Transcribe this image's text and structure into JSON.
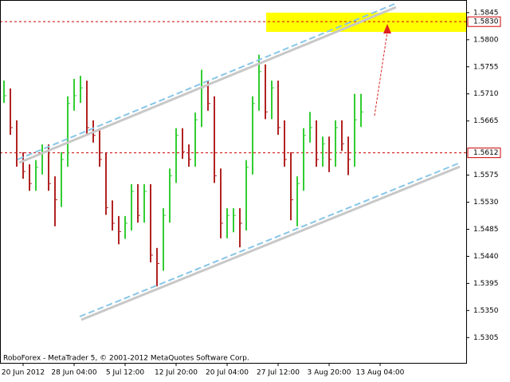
{
  "chart_data": {
    "type": "bars",
    "footer": "RoboForex - MetaTrader 5, © 2001-2012 MetaQuotes Software Corp.",
    "categories": [
      null,
      null,
      null,
      "20 Jun 2012",
      null,
      null,
      null,
      null,
      null,
      null,
      null,
      "28 Jun 04:00",
      null,
      null,
      null,
      null,
      null,
      null,
      null,
      "5 Jul 12:00",
      null,
      null,
      null,
      null,
      null,
      null,
      null,
      "12 Jul 20:00",
      null,
      null,
      null,
      null,
      null,
      null,
      null,
      "20 Jul 04:00",
      null,
      null,
      null,
      null,
      null,
      null,
      null,
      "27 Jul 12:00",
      null,
      null,
      null,
      null,
      null,
      null,
      null,
      "3 Aug 20:00",
      null,
      null,
      null,
      null,
      null,
      null,
      null,
      "13 Aug 04:00"
    ],
    "high": [
      1.5732,
      1.5719,
      1.5666,
      1.5613,
      1.5593,
      1.56,
      1.5626,
      1.5626,
      1.5573,
      1.5613,
      1.5706,
      1.5735,
      1.574,
      1.5732,
      1.5666,
      1.5653,
      1.5613,
      1.5533,
      1.5507,
      1.5507,
      1.556,
      1.556,
      1.556,
      1.556,
      1.5454,
      1.552,
      1.5586,
      1.5653,
      1.5653,
      1.5626,
      1.5679,
      1.575,
      1.5732,
      1.5706,
      1.5586,
      1.552,
      1.552,
      1.552,
      1.56,
      1.5706,
      1.5775,
      1.5759,
      1.5732,
      1.5732,
      1.5666,
      1.5613,
      1.5573,
      1.5653,
      1.568,
      1.5666,
      1.5639,
      1.5639,
      1.5666,
      1.5666,
      1.5639,
      1.571,
      1.571,
      null,
      null,
      null
    ],
    "low": [
      1.5695,
      1.5642,
      1.5589,
      1.5569,
      1.5549,
      1.5549,
      1.5576,
      1.5549,
      1.549,
      1.5522,
      1.5589,
      1.5682,
      1.5695,
      1.5642,
      1.5629,
      1.5589,
      1.5509,
      1.5483,
      1.546,
      1.5469,
      1.5483,
      1.5496,
      1.5496,
      1.543,
      1.539,
      1.5416,
      1.5496,
      1.5562,
      1.5602,
      1.5589,
      1.5589,
      1.5655,
      1.5682,
      1.5562,
      1.547,
      1.547,
      1.548,
      1.5455,
      1.5483,
      1.5576,
      1.5682,
      1.5668,
      1.5668,
      1.5642,
      1.5589,
      1.55,
      1.549,
      1.5549,
      1.5629,
      1.5589,
      1.5589,
      1.558,
      1.5589,
      1.5615,
      1.5575,
      1.5589,
      1.5655,
      null,
      null,
      null
    ],
    "close": [
      1.5707,
      1.5654,
      1.5601,
      1.5581,
      1.5561,
      1.5588,
      1.5614,
      1.5561,
      1.5534,
      1.5601,
      1.5694,
      1.5707,
      1.572,
      1.5654,
      1.5641,
      1.5601,
      1.5521,
      1.5495,
      1.5481,
      1.5495,
      1.5548,
      1.5508,
      1.5548,
      1.5442,
      1.5428,
      1.5508,
      1.5574,
      1.5641,
      1.5614,
      1.5601,
      1.5667,
      1.572,
      1.5694,
      1.5574,
      1.5495,
      1.5508,
      1.5508,
      1.5495,
      1.5588,
      1.5694,
      1.5747,
      1.568,
      1.572,
      1.5654,
      1.5601,
      1.5534,
      1.5561,
      1.5641,
      1.5654,
      1.5601,
      1.5627,
      1.5601,
      1.5654,
      1.5627,
      1.5601,
      1.5667,
      1.568,
      null,
      null,
      null
    ],
    "up_color": "#32cd32",
    "down_color": "#b22222",
    "ylim": [
      1.5263,
      1.5866
    ],
    "yticks": [
      1.5845,
      {
        "value": 1.58,
        "label": "1.5800"
      },
      1.5755,
      {
        "value": 1.571,
        "label": "1.5710"
      },
      1.5665,
      1.5575,
      {
        "value": 1.553,
        "label": "1.5530"
      },
      1.5485,
      {
        "value": 1.544,
        "label": "1.5440"
      },
      1.5395,
      {
        "value": 1.535,
        "label": "1.5350"
      },
      1.5305
    ],
    "levels": [
      {
        "value": 1.583,
        "label": "1.5830"
      },
      {
        "value": 1.5612,
        "label": "1.5612"
      }
    ],
    "level_color": "#cc0000",
    "zone": {
      "from": 1.5813,
      "to": 1.5845,
      "color": "#ffff00"
    }
  }
}
